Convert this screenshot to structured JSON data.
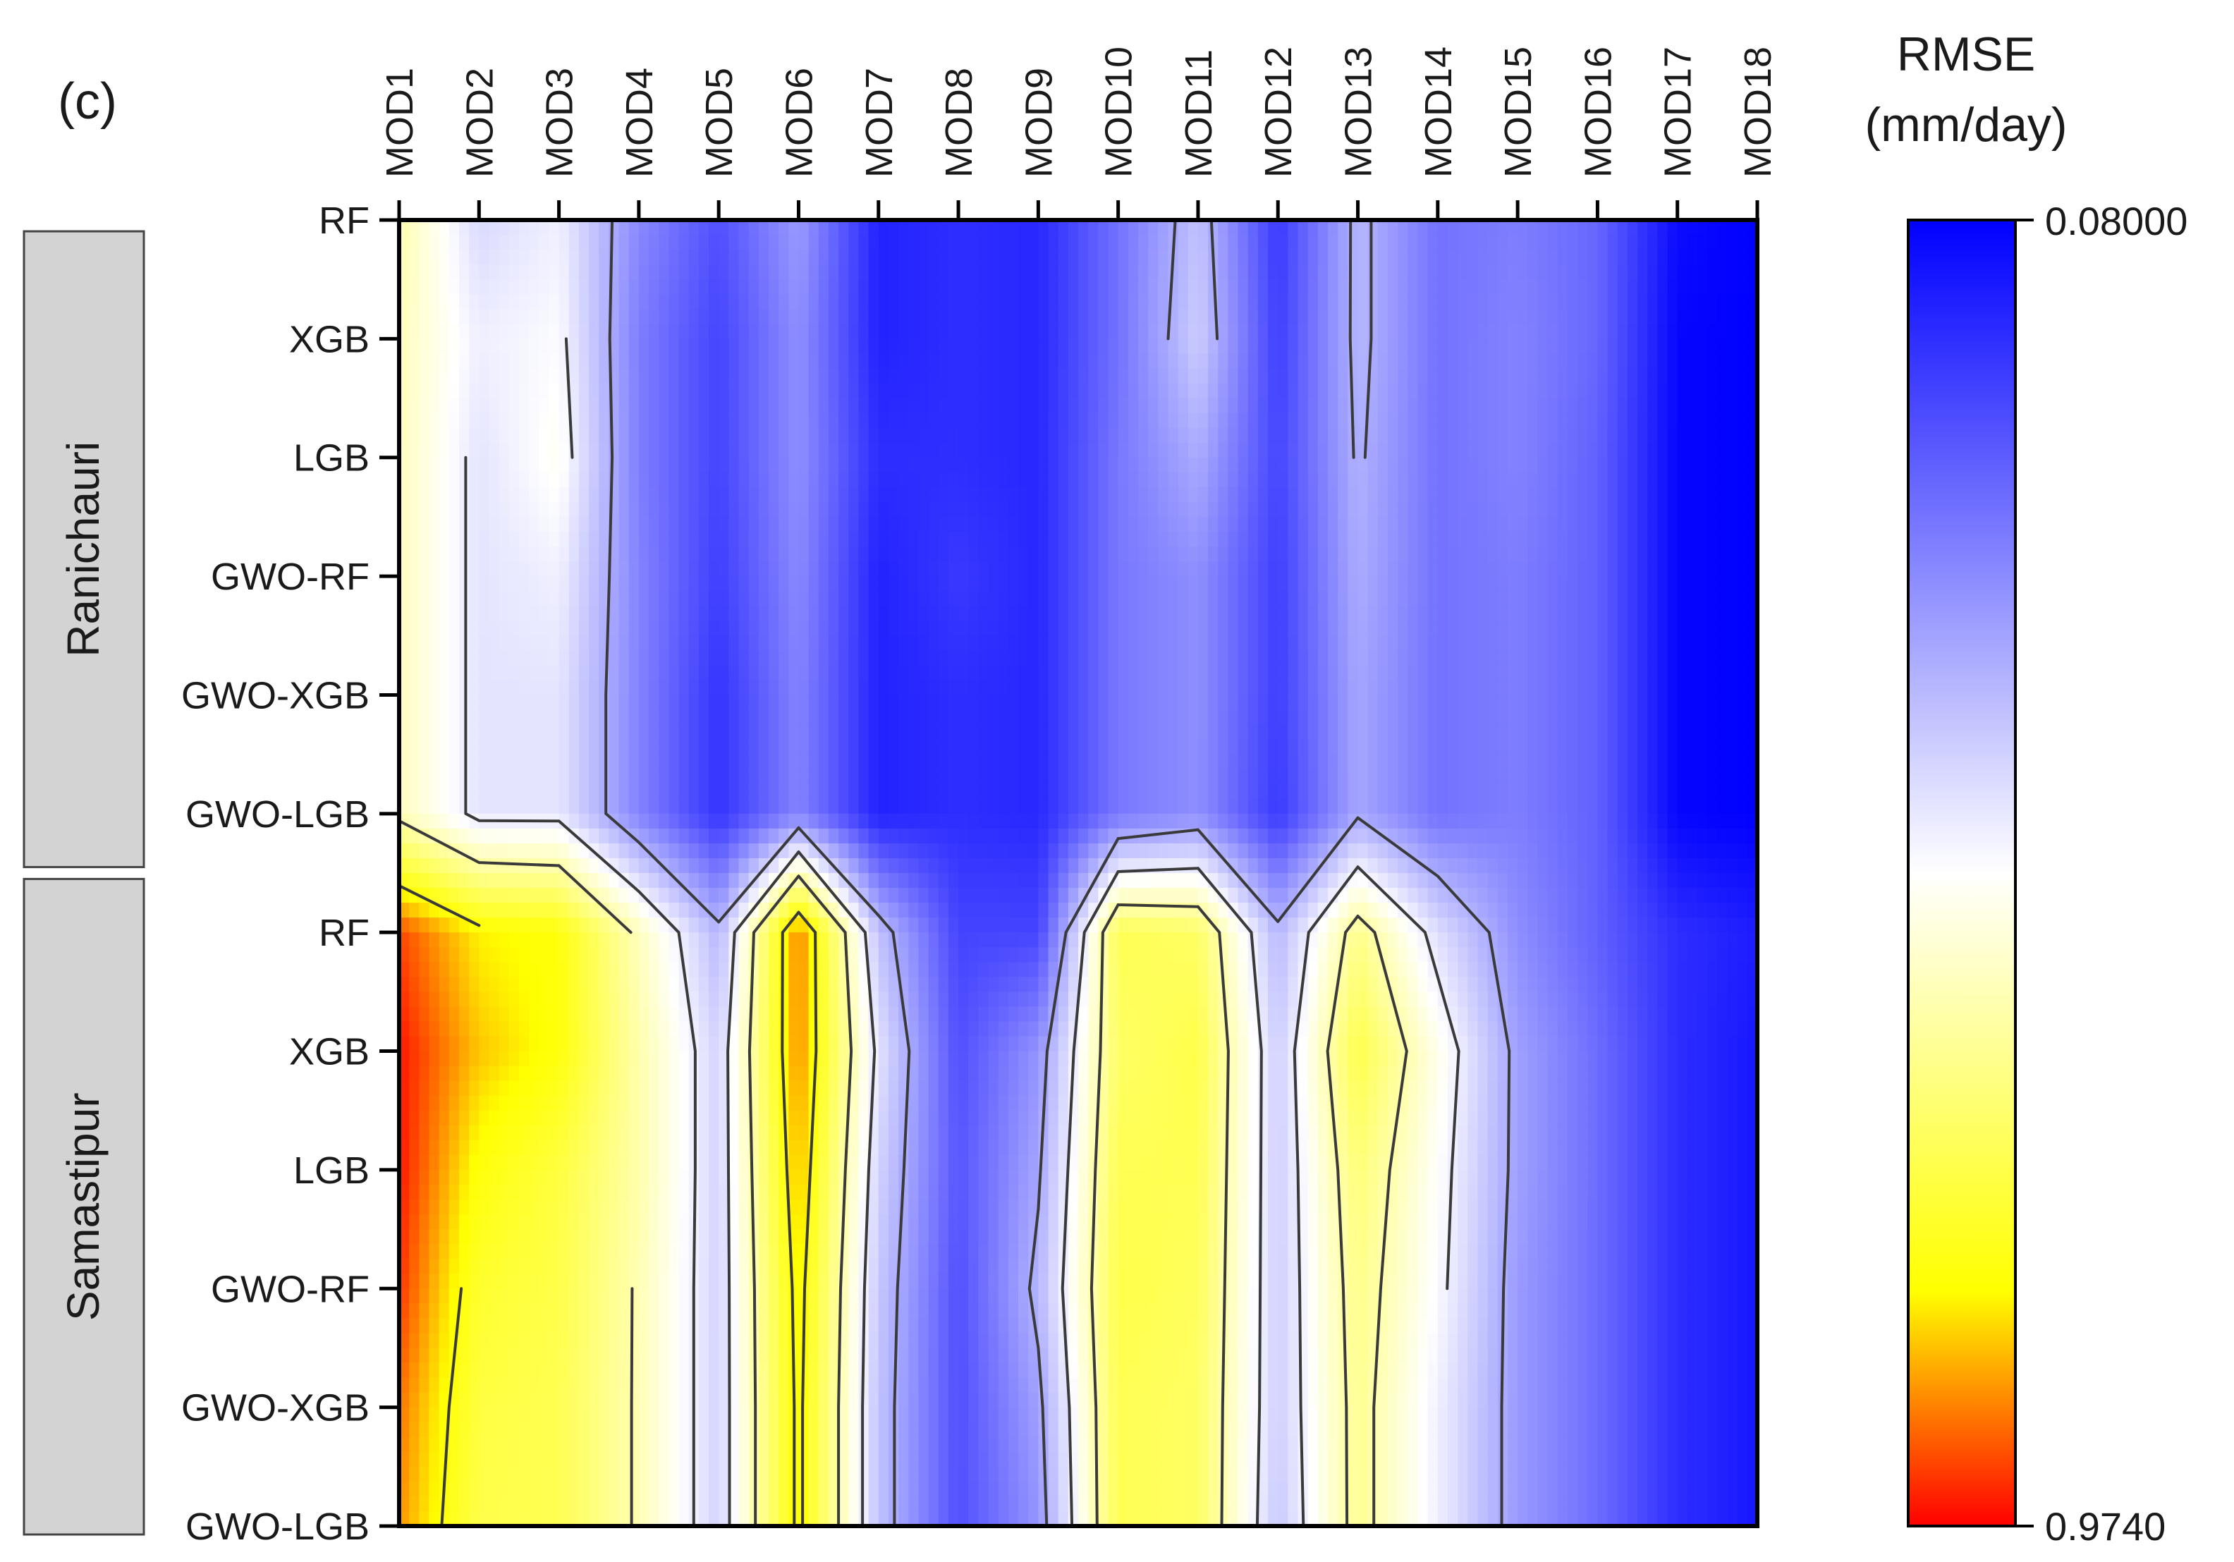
{
  "panel_label": "(c)",
  "chart_data": {
    "type": "heatmap",
    "title": "",
    "colorbar": {
      "title_line1": "RMSE",
      "title_line2": "(mm/day)",
      "top_label": "0.08000",
      "bottom_label": "0.9740",
      "min": 0.08,
      "max": 0.974,
      "top_color": "#0000ff",
      "mid_color": "#ffffff",
      "upper_warm_color": "#ffff00",
      "bottom_color": "#ff0000"
    },
    "x_categories": [
      "MOD1",
      "MOD2",
      "MOD3",
      "MOD4",
      "MOD5",
      "MOD6",
      "MOD7",
      "MOD8",
      "MOD9",
      "MOD10",
      "MOD11",
      "MOD12",
      "MOD13",
      "MOD14",
      "MOD15",
      "MOD16",
      "MOD17",
      "MOD18"
    ],
    "y_categories": [
      "RF",
      "XGB",
      "LGB",
      "GWO-RF",
      "GWO-XGB",
      "GWO-LGB",
      "RF",
      "XGB",
      "LGB",
      "GWO-RF",
      "GWO-XGB",
      "GWO-LGB"
    ],
    "groups": [
      {
        "name": "Ranichauri",
        "rows": [
          0,
          5
        ]
      },
      {
        "name": "Samastipur",
        "rows": [
          6,
          11
        ]
      }
    ],
    "contour_levels": [
      0.38,
      0.5,
      0.62,
      0.8
    ],
    "values": [
      [
        0.62,
        0.46,
        0.5,
        0.32,
        0.22,
        0.35,
        0.14,
        0.16,
        0.15,
        0.28,
        0.42,
        0.18,
        0.4,
        0.28,
        0.3,
        0.26,
        0.1,
        0.08
      ],
      [
        0.6,
        0.5,
        0.52,
        0.3,
        0.2,
        0.33,
        0.14,
        0.16,
        0.15,
        0.28,
        0.44,
        0.19,
        0.4,
        0.28,
        0.31,
        0.26,
        0.09,
        0.08
      ],
      [
        0.6,
        0.48,
        0.54,
        0.3,
        0.2,
        0.33,
        0.16,
        0.16,
        0.15,
        0.29,
        0.38,
        0.2,
        0.39,
        0.28,
        0.31,
        0.25,
        0.09,
        0.08
      ],
      [
        0.6,
        0.48,
        0.5,
        0.31,
        0.19,
        0.32,
        0.14,
        0.18,
        0.15,
        0.29,
        0.33,
        0.19,
        0.38,
        0.28,
        0.3,
        0.25,
        0.09,
        0.08
      ],
      [
        0.6,
        0.48,
        0.48,
        0.31,
        0.17,
        0.31,
        0.14,
        0.16,
        0.15,
        0.29,
        0.33,
        0.19,
        0.37,
        0.28,
        0.3,
        0.25,
        0.09,
        0.08
      ],
      [
        0.6,
        0.48,
        0.48,
        0.31,
        0.17,
        0.31,
        0.14,
        0.16,
        0.15,
        0.29,
        0.33,
        0.18,
        0.37,
        0.28,
        0.3,
        0.25,
        0.09,
        0.08
      ],
      [
        0.93,
        0.82,
        0.8,
        0.6,
        0.4,
        0.9,
        0.42,
        0.2,
        0.2,
        0.72,
        0.7,
        0.4,
        0.66,
        0.47,
        0.33,
        0.25,
        0.16,
        0.13
      ],
      [
        0.96,
        0.85,
        0.8,
        0.62,
        0.45,
        0.89,
        0.48,
        0.22,
        0.34,
        0.7,
        0.73,
        0.44,
        0.73,
        0.55,
        0.36,
        0.27,
        0.16,
        0.12
      ],
      [
        0.96,
        0.8,
        0.74,
        0.62,
        0.45,
        0.86,
        0.45,
        0.23,
        0.37,
        0.72,
        0.72,
        0.44,
        0.68,
        0.53,
        0.36,
        0.27,
        0.16,
        0.12
      ],
      [
        0.94,
        0.76,
        0.73,
        0.61,
        0.45,
        0.83,
        0.43,
        0.22,
        0.4,
        0.73,
        0.71,
        0.44,
        0.66,
        0.52,
        0.35,
        0.27,
        0.16,
        0.12
      ],
      [
        0.9,
        0.74,
        0.72,
        0.61,
        0.45,
        0.82,
        0.42,
        0.22,
        0.36,
        0.72,
        0.7,
        0.44,
        0.65,
        0.5,
        0.35,
        0.27,
        0.16,
        0.12
      ],
      [
        0.88,
        0.73,
        0.72,
        0.61,
        0.45,
        0.82,
        0.42,
        0.22,
        0.34,
        0.72,
        0.7,
        0.43,
        0.65,
        0.5,
        0.35,
        0.27,
        0.16,
        0.12
      ]
    ]
  }
}
